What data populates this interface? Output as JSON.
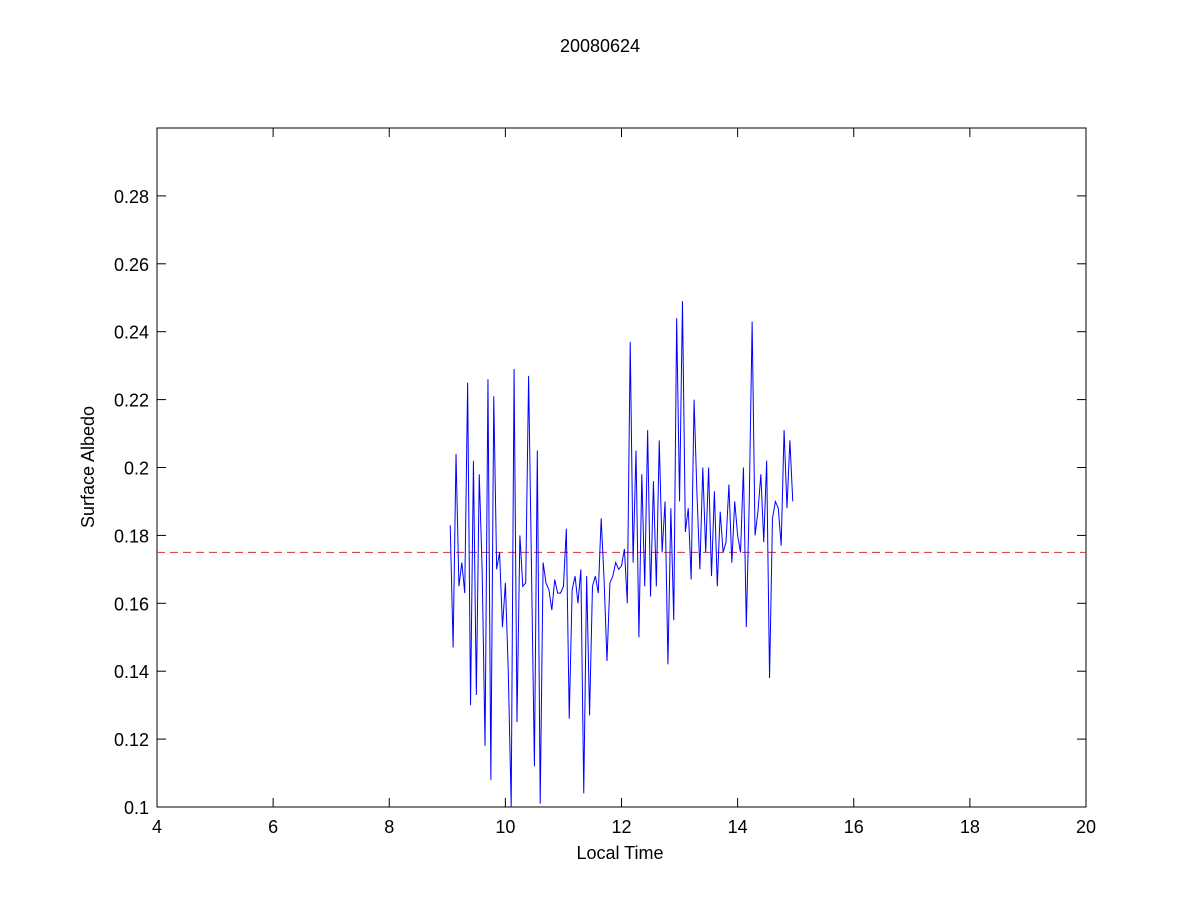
{
  "chart_data": {
    "type": "line",
    "title": "20080624",
    "xlabel": "Local Time",
    "ylabel": "Surface Albedo",
    "x": [
      9.05,
      9.1,
      9.15,
      9.2,
      9.25,
      9.3,
      9.35,
      9.4,
      9.45,
      9.5,
      9.55,
      9.6,
      9.65,
      9.7,
      9.75,
      9.8,
      9.85,
      9.9,
      9.95,
      10.0,
      10.05,
      10.1,
      10.15,
      10.2,
      10.25,
      10.3,
      10.35,
      10.4,
      10.45,
      10.5,
      10.55,
      10.6,
      10.65,
      10.7,
      10.75,
      10.8,
      10.85,
      10.9,
      10.95,
      11.0,
      11.05,
      11.1,
      11.15,
      11.2,
      11.25,
      11.3,
      11.35,
      11.4,
      11.45,
      11.5,
      11.55,
      11.6,
      11.65,
      11.7,
      11.75,
      11.8,
      11.85,
      11.9,
      11.95,
      12.0,
      12.05,
      12.1,
      12.15,
      12.2,
      12.25,
      12.3,
      12.35,
      12.4,
      12.45,
      12.5,
      12.55,
      12.6,
      12.65,
      12.7,
      12.75,
      12.8,
      12.85,
      12.9,
      12.95,
      13.0,
      13.05,
      13.1,
      13.15,
      13.2,
      13.25,
      13.3,
      13.35,
      13.4,
      13.45,
      13.5,
      13.55,
      13.6,
      13.65,
      13.7,
      13.75,
      13.8,
      13.85,
      13.9,
      13.95,
      14.0,
      14.05,
      14.1,
      14.15,
      14.2,
      14.25,
      14.3,
      14.35,
      14.4,
      14.45,
      14.5,
      14.55,
      14.6,
      14.65,
      14.7,
      14.75,
      14.8,
      14.85,
      14.9,
      14.95
    ],
    "series": [
      {
        "color": "#0000ff",
        "values": [
          0.183,
          0.147,
          0.204,
          0.165,
          0.172,
          0.163,
          0.225,
          0.13,
          0.202,
          0.133,
          0.198,
          0.17,
          0.118,
          0.226,
          0.108,
          0.221,
          0.17,
          0.175,
          0.153,
          0.166,
          0.14,
          0.1,
          0.229,
          0.125,
          0.18,
          0.165,
          0.166,
          0.227,
          0.17,
          0.112,
          0.205,
          0.101,
          0.172,
          0.166,
          0.164,
          0.158,
          0.167,
          0.163,
          0.163,
          0.165,
          0.182,
          0.126,
          0.164,
          0.168,
          0.16,
          0.17,
          0.104,
          0.168,
          0.127,
          0.165,
          0.168,
          0.163,
          0.185,
          0.167,
          0.143,
          0.166,
          0.168,
          0.172,
          0.17,
          0.171,
          0.176,
          0.16,
          0.237,
          0.172,
          0.205,
          0.15,
          0.198,
          0.165,
          0.211,
          0.162,
          0.196,
          0.165,
          0.208,
          0.175,
          0.19,
          0.142,
          0.188,
          0.155,
          0.244,
          0.19,
          0.249,
          0.181,
          0.188,
          0.167,
          0.22,
          0.192,
          0.17,
          0.2,
          0.175,
          0.2,
          0.168,
          0.193,
          0.165,
          0.187,
          0.175,
          0.178,
          0.195,
          0.172,
          0.19,
          0.18,
          0.175,
          0.2,
          0.153,
          0.19,
          0.243,
          0.18,
          0.187,
          0.198,
          0.178,
          0.202,
          0.138,
          0.185,
          0.19,
          0.188,
          0.177,
          0.211,
          0.188,
          0.208,
          0.19
        ]
      }
    ],
    "hline": {
      "value": 0.175,
      "color": "#cc3333"
    },
    "xlim": [
      4,
      20
    ],
    "xticks": [
      4,
      6,
      8,
      10,
      12,
      14,
      16,
      18,
      20
    ],
    "ylim": [
      0.1,
      0.3
    ],
    "yticks": [
      0.1,
      0.12,
      0.14,
      0.16,
      0.18,
      0.2,
      0.22,
      0.24,
      0.26,
      0.28
    ]
  }
}
